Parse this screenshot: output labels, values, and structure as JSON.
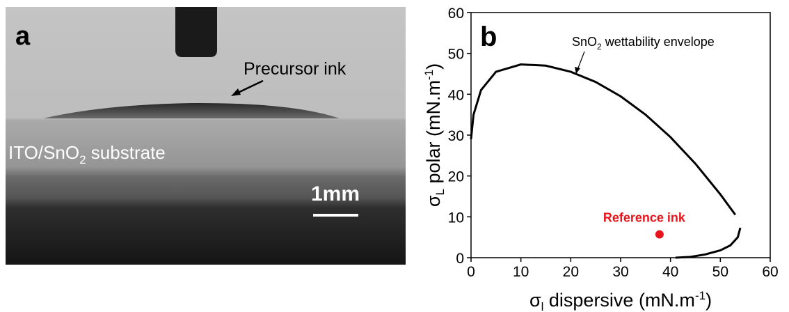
{
  "panel_a": {
    "label": "a",
    "drop_label": "Precursor ink",
    "substrate_label": [
      "ITO/SnO",
      "2",
      " substrate"
    ],
    "scale_label": "1mm"
  },
  "chart_data": {
    "type": "line",
    "panel_label": "b",
    "xlabel": [
      "σ",
      "l",
      " dispersive ",
      "(mN.m",
      "-1",
      ")"
    ],
    "ylabel": [
      "σ",
      "L",
      " polar ",
      "(mN.m",
      "-1",
      ")"
    ],
    "annotation": [
      "SnO",
      "2",
      " wettability envelope"
    ],
    "x": [
      0,
      0.5,
      2,
      5,
      10,
      15,
      20,
      25,
      30,
      35,
      40,
      45,
      50,
      53,
      null,
      54,
      53.5,
      52,
      50,
      47,
      44,
      41
    ],
    "values": [
      29,
      35,
      41,
      45.5,
      47.3,
      47,
      45.5,
      43,
      39.5,
      35,
      29.5,
      23,
      15.5,
      10.5,
      null,
      7.3,
      5,
      3,
      1.8,
      0.8,
      0.2,
      0
    ],
    "color": "#000000",
    "points": [
      {
        "label": "Reference ink",
        "x": 37.8,
        "y": 5.7,
        "color": "#e8141b"
      }
    ],
    "xlim": [
      0,
      60
    ],
    "xticks": [
      0,
      10,
      20,
      30,
      40,
      50,
      60
    ],
    "ylim": [
      0,
      60
    ],
    "yticks": [
      0,
      10,
      20,
      30,
      40,
      50,
      60
    ]
  }
}
